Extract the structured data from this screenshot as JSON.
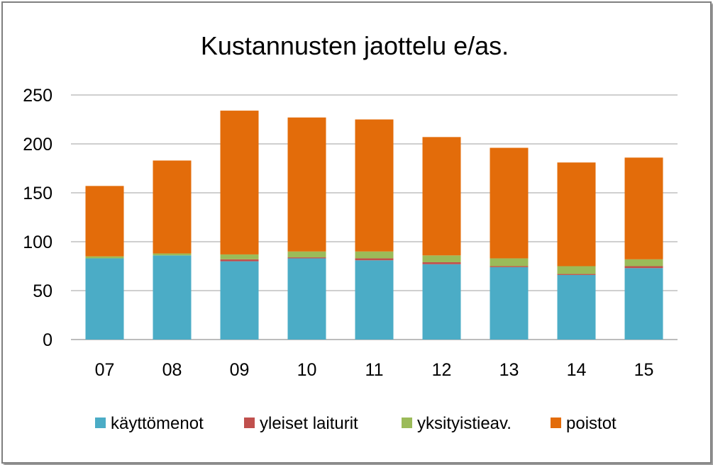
{
  "chart_data": {
    "type": "bar",
    "stacked": true,
    "title": "Kustannusten jaottelu e/as.",
    "xlabel": "",
    "ylabel": "",
    "categories": [
      "07",
      "08",
      "09",
      "10",
      "11",
      "12",
      "13",
      "14",
      "15"
    ],
    "ylim": [
      0,
      250
    ],
    "yticks": [
      0,
      50,
      100,
      150,
      200,
      250
    ],
    "grid": true,
    "legend_position": "bottom",
    "series": [
      {
        "name": "käyttömenot",
        "color": "#4bacc6",
        "values": [
          83,
          86,
          80,
          83,
          81,
          77,
          74,
          66,
          73
        ]
      },
      {
        "name": "yleiset laiturit",
        "color": "#c0504d",
        "values": [
          0,
          0,
          2,
          1,
          2,
          2,
          1,
          1,
          2
        ]
      },
      {
        "name": "yksityistieav.",
        "color": "#9bbb59",
        "values": [
          2,
          2,
          5,
          6,
          7,
          7,
          8,
          8,
          7
        ]
      },
      {
        "name": "poistot",
        "color": "#e36c0a",
        "values": [
          72,
          95,
          147,
          137,
          135,
          121,
          113,
          106,
          104
        ]
      }
    ]
  }
}
